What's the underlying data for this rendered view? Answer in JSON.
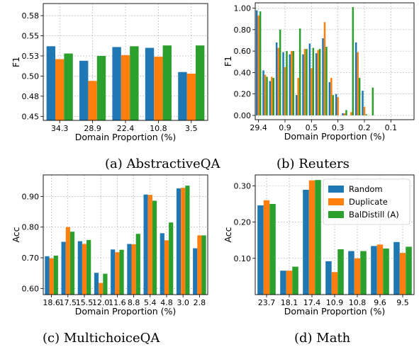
{
  "colors": {
    "Random": "#1f77b4",
    "Duplicate": "#ff7f0e",
    "BalDistill (A)": "#2ca02c"
  },
  "legend": {
    "placement": "upper-right",
    "panel": "d",
    "entries": [
      "Random",
      "Duplicate",
      "BalDistill (A)"
    ]
  },
  "chart_data": [
    {
      "id": "a",
      "type": "bar",
      "caption": "(a) AbstractiveQA",
      "xlabel": "Domain Proportion (%)",
      "ylabel": "F1",
      "categories": [
        "34.3",
        "28.9",
        "22.4",
        "10.8",
        "3.5"
      ],
      "ylim": [
        0.445,
        0.59
      ],
      "yticks": [
        0.45,
        0.475,
        0.5,
        0.525,
        0.55,
        0.575
      ],
      "yticklabels": [
        "0.45",
        "0.48",
        "0.50",
        "0.53",
        "0.55",
        "0.58"
      ],
      "grid": true,
      "series": [
        {
          "name": "Random",
          "values": [
            0.537,
            0.519,
            0.536,
            0.535,
            0.505
          ]
        },
        {
          "name": "Duplicate",
          "values": [
            0.521,
            0.494,
            0.526,
            0.524,
            0.503
          ]
        },
        {
          "name": "BalDistill (A)",
          "values": [
            0.528,
            0.525,
            0.537,
            0.538,
            0.538
          ]
        }
      ]
    },
    {
      "id": "b",
      "type": "bar",
      "caption": "(b) Reuters",
      "xlabel": "Domain Proportion (%)",
      "ylabel": "F1",
      "categories": [
        "29.4",
        "",
        "",
        "",
        "0.9",
        "",
        "",
        "",
        "0.5",
        "",
        "",
        "",
        "0.3",
        "",
        "",
        "",
        "0.2",
        "",
        "",
        "",
        "0.1",
        "",
        "",
        ""
      ],
      "xticks": [
        "29.4",
        "0.9",
        "0.5",
        "0.3",
        "0.2",
        "0.1"
      ],
      "ylim": [
        -0.04,
        1.05
      ],
      "yticks": [
        0.0,
        0.2,
        0.4,
        0.6,
        0.8,
        1.0
      ],
      "yticklabels": [
        "0.00",
        "0.20",
        "0.40",
        "0.60",
        "0.80",
        "1.00"
      ],
      "grid": true,
      "series": [
        {
          "name": "Random",
          "values": [
            0.98,
            0.42,
            0.32,
            0.68,
            0.59,
            0.57,
            0.19,
            0.57,
            0.67,
            0.58,
            0.72,
            0.31,
            0.2,
            0.02,
            0.0,
            0.68,
            0.23,
            0.0,
            0,
            0,
            0,
            0,
            0,
            0
          ]
        },
        {
          "name": "Duplicate",
          "values": [
            0.93,
            0.38,
            0.36,
            0.63,
            0.45,
            0.6,
            0.35,
            0.62,
            0.44,
            0.61,
            0.87,
            0.35,
            0.17,
            0.02,
            0.03,
            0.59,
            0.08,
            0.0,
            0,
            0,
            0,
            0,
            0,
            0
          ]
        },
        {
          "name": "BalDistill (A)",
          "values": [
            0.97,
            0.36,
            0.35,
            0.8,
            0.6,
            0.6,
            0.81,
            0.62,
            0.63,
            0.62,
            0.64,
            0.19,
            0.0,
            0.05,
            1.01,
            0.35,
            0.01,
            0.26,
            0,
            0,
            0,
            0,
            0,
            0
          ]
        }
      ]
    },
    {
      "id": "c",
      "type": "bar",
      "caption": "(c) MultichoiceQA",
      "xlabel": "Domain Proportion (%)",
      "ylabel": "Acc",
      "categories": [
        "18.6",
        "17.5",
        "15.5",
        "12.0",
        "11.6",
        "8.8",
        "5.4",
        "4.8",
        "3.0",
        "2.8"
      ],
      "ylim": [
        0.58,
        0.97
      ],
      "yticks": [
        0.6,
        0.7,
        0.8,
        0.9
      ],
      "yticklabels": [
        "0.60",
        "0.70",
        "0.80",
        "0.90"
      ],
      "grid": true,
      "series": [
        {
          "name": "Random",
          "values": [
            0.705,
            0.752,
            0.754,
            0.651,
            0.727,
            0.745,
            0.906,
            0.78,
            0.926,
            0.731
          ]
        },
        {
          "name": "Duplicate",
          "values": [
            0.698,
            0.8,
            0.745,
            0.618,
            0.718,
            0.744,
            0.905,
            0.757,
            0.928,
            0.773
          ]
        },
        {
          "name": "BalDistill (A)",
          "values": [
            0.707,
            0.785,
            0.758,
            0.648,
            0.726,
            0.778,
            0.886,
            0.815,
            0.935,
            0.773
          ]
        }
      ]
    },
    {
      "id": "d",
      "type": "bar",
      "caption": "(d) Math",
      "xlabel": "Domain Proportion (%)",
      "ylabel": "Acc",
      "categories": [
        "23.7",
        "18.1",
        "17.4",
        "10.9",
        "10.8",
        "9.6",
        "9.5"
      ],
      "ylim": [
        0,
        0.33
      ],
      "yticks": [
        0.1,
        0.2,
        0.3
      ],
      "yticklabels": [
        "0.10",
        "0.20",
        "0.30"
      ],
      "grid": true,
      "series": [
        {
          "name": "Random",
          "values": [
            0.246,
            0.066,
            0.289,
            0.092,
            0.12,
            0.134,
            0.145
          ]
        },
        {
          "name": "Duplicate",
          "values": [
            0.26,
            0.066,
            0.315,
            0.062,
            0.1,
            0.138,
            0.115
          ]
        },
        {
          "name": "BalDistill (A)",
          "values": [
            0.25,
            0.077,
            0.316,
            0.125,
            0.12,
            0.127,
            0.132
          ]
        }
      ]
    }
  ]
}
